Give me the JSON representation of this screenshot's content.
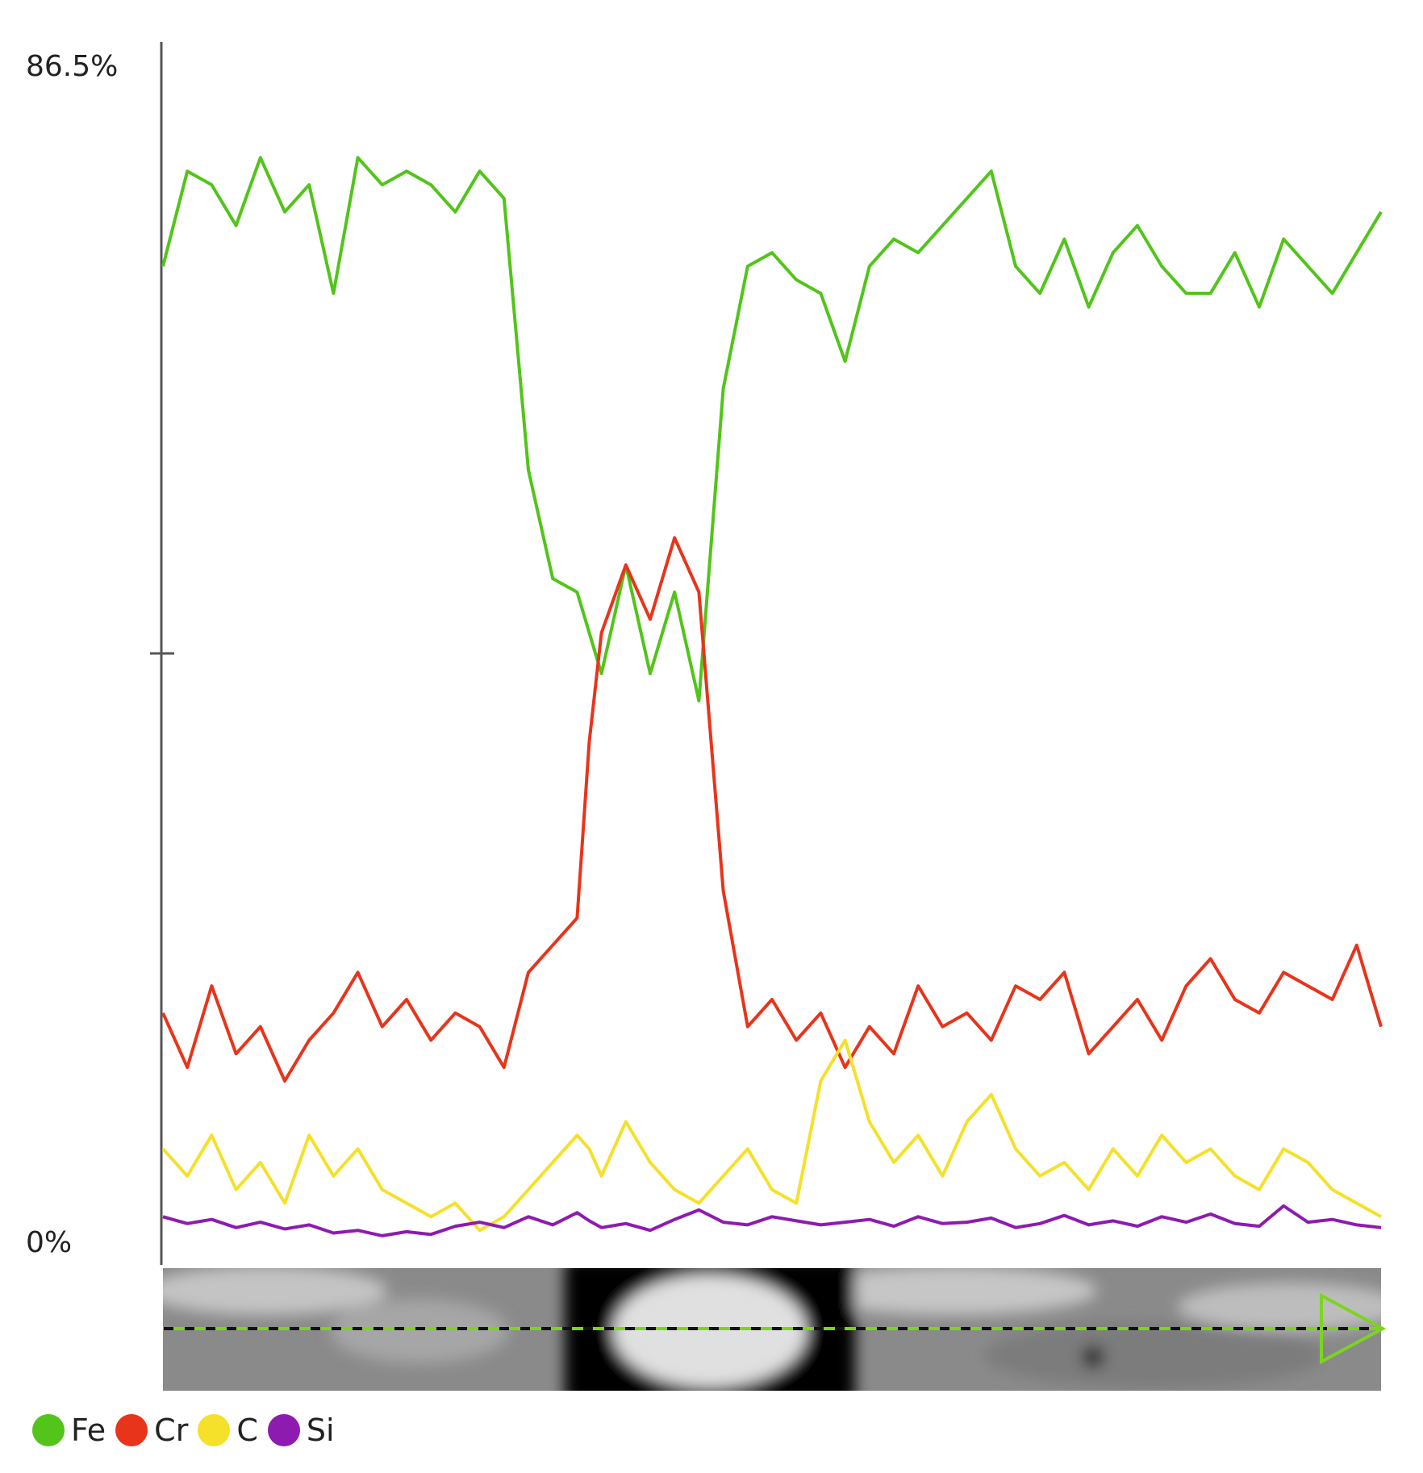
{
  "chart_data": {
    "type": "line",
    "y_axis": {
      "max_label": "86.5%",
      "min_label": "0%",
      "ylim": [
        0,
        86.5
      ],
      "unit": "%"
    },
    "x_range": [
      0,
      1
    ],
    "grid": false,
    "legend_position": "bottom-left",
    "series": [
      {
        "name": "Fe",
        "color": "#52c41a",
        "x": [
          0.0,
          0.02,
          0.04,
          0.06,
          0.08,
          0.1,
          0.12,
          0.14,
          0.16,
          0.18,
          0.2,
          0.22,
          0.24,
          0.26,
          0.28,
          0.3,
          0.32,
          0.34,
          0.35,
          0.36,
          0.38,
          0.4,
          0.42,
          0.44,
          0.46,
          0.48,
          0.5,
          0.52,
          0.54,
          0.56,
          0.58,
          0.6,
          0.62,
          0.64,
          0.66,
          0.68,
          0.7,
          0.72,
          0.74,
          0.76,
          0.78,
          0.8,
          0.82,
          0.84,
          0.86,
          0.88,
          0.9,
          0.92,
          0.94,
          0.96,
          0.98,
          1.0
        ],
        "values": [
          72,
          79,
          78,
          75,
          80,
          76,
          78,
          70,
          80,
          78,
          79,
          78,
          76,
          79,
          77,
          57,
          49,
          48,
          45,
          42,
          50,
          42,
          48,
          40,
          63,
          72,
          73,
          71,
          70,
          65,
          72,
          74,
          73,
          75,
          77,
          79,
          72,
          70,
          74,
          69,
          73,
          75,
          72,
          70,
          70,
          73,
          69,
          74,
          72,
          70,
          73,
          76
        ]
      },
      {
        "name": "Cr",
        "color": "#e8341b",
        "x": [
          0.0,
          0.02,
          0.04,
          0.06,
          0.08,
          0.1,
          0.12,
          0.14,
          0.16,
          0.18,
          0.2,
          0.22,
          0.24,
          0.26,
          0.28,
          0.3,
          0.32,
          0.34,
          0.35,
          0.36,
          0.38,
          0.4,
          0.42,
          0.44,
          0.46,
          0.48,
          0.5,
          0.52,
          0.54,
          0.56,
          0.58,
          0.6,
          0.62,
          0.64,
          0.66,
          0.68,
          0.7,
          0.72,
          0.74,
          0.76,
          0.78,
          0.8,
          0.82,
          0.84,
          0.86,
          0.88,
          0.9,
          0.92,
          0.94,
          0.96,
          0.98,
          1.0
        ],
        "values": [
          17,
          13,
          19,
          14,
          16,
          12,
          15,
          17,
          20,
          16,
          18,
          15,
          17,
          16,
          13,
          20,
          22,
          24,
          37,
          45,
          50,
          46,
          52,
          48,
          26,
          16,
          18,
          15,
          17,
          13,
          16,
          14,
          19,
          16,
          17,
          15,
          19,
          18,
          20,
          14,
          16,
          18,
          15,
          19,
          21,
          18,
          17,
          20,
          19,
          18,
          22,
          16
        ]
      },
      {
        "name": "C",
        "color": "#f5e02a",
        "x": [
          0.0,
          0.02,
          0.04,
          0.06,
          0.08,
          0.1,
          0.12,
          0.14,
          0.16,
          0.18,
          0.2,
          0.22,
          0.24,
          0.26,
          0.28,
          0.3,
          0.32,
          0.34,
          0.35,
          0.36,
          0.38,
          0.4,
          0.42,
          0.44,
          0.46,
          0.48,
          0.5,
          0.52,
          0.54,
          0.56,
          0.58,
          0.6,
          0.62,
          0.64,
          0.66,
          0.68,
          0.7,
          0.72,
          0.74,
          0.76,
          0.78,
          0.8,
          0.82,
          0.84,
          0.86,
          0.88,
          0.9,
          0.92,
          0.94,
          0.96,
          0.98,
          1.0
        ],
        "values": [
          7,
          5,
          8,
          4,
          6,
          3,
          8,
          5,
          7,
          4,
          3,
          2,
          3,
          1,
          2,
          4,
          6,
          8,
          7,
          5,
          9,
          6,
          4,
          3,
          5,
          7,
          4,
          3,
          12,
          15,
          9,
          6,
          8,
          5,
          9,
          11,
          7,
          5,
          6,
          4,
          7,
          5,
          8,
          6,
          7,
          5,
          4,
          7,
          6,
          4,
          3,
          2
        ]
      },
      {
        "name": "Si",
        "color": "#8e1bb0",
        "x": [
          0.0,
          0.02,
          0.04,
          0.06,
          0.08,
          0.1,
          0.12,
          0.14,
          0.16,
          0.18,
          0.2,
          0.22,
          0.24,
          0.26,
          0.28,
          0.3,
          0.32,
          0.34,
          0.35,
          0.36,
          0.38,
          0.4,
          0.42,
          0.44,
          0.46,
          0.48,
          0.5,
          0.52,
          0.54,
          0.56,
          0.58,
          0.6,
          0.62,
          0.64,
          0.66,
          0.68,
          0.7,
          0.72,
          0.74,
          0.76,
          0.78,
          0.8,
          0.82,
          0.84,
          0.86,
          0.88,
          0.9,
          0.92,
          0.94,
          0.96,
          0.98,
          1.0
        ],
        "values": [
          2,
          1.5,
          1.8,
          1.2,
          1.6,
          1.1,
          1.4,
          0.8,
          1.0,
          0.6,
          0.9,
          0.7,
          1.3,
          1.6,
          1.2,
          2.0,
          1.4,
          2.3,
          1.7,
          1.2,
          1.5,
          1.0,
          1.8,
          2.5,
          1.6,
          1.4,
          2.0,
          1.7,
          1.4,
          1.6,
          1.8,
          1.3,
          2.0,
          1.5,
          1.6,
          1.9,
          1.2,
          1.5,
          2.1,
          1.4,
          1.7,
          1.3,
          2.0,
          1.6,
          2.2,
          1.5,
          1.3,
          2.8,
          1.6,
          1.8,
          1.4,
          1.2
        ]
      }
    ]
  }
}
